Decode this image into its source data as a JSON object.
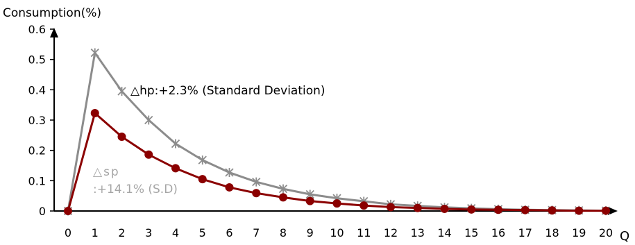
{
  "chart_data": {
    "type": "line",
    "ylabel": "Consumption(%)",
    "xlabel": "Q",
    "xlim": [
      0,
      20
    ],
    "ylim": [
      0,
      0.6
    ],
    "yticks": [
      "0",
      "0.1",
      "0.2",
      "0.3",
      "0.4",
      "0.5",
      "0.6"
    ],
    "x": [
      0,
      1,
      2,
      3,
      4,
      5,
      6,
      7,
      8,
      9,
      10,
      11,
      12,
      13,
      14,
      15,
      16,
      17,
      18,
      19,
      20
    ],
    "xticks": [
      "0",
      "1",
      "2",
      "3",
      "4",
      "5",
      "6",
      "7",
      "8",
      "9",
      "10",
      "11",
      "12",
      "13",
      "14",
      "15",
      "16",
      "17",
      "18",
      "19",
      "20"
    ],
    "grid": false,
    "series": [
      {
        "name": "△hp:+2.3% (Standard Deviation)",
        "color": "#8c8c8c",
        "marker": "star",
        "values": [
          0,
          0.522,
          0.395,
          0.3,
          0.222,
          0.168,
          0.127,
          0.096,
          0.073,
          0.055,
          0.042,
          0.032,
          0.022,
          0.017,
          0.012,
          0.009,
          0.006,
          0.004,
          0.003,
          0.002,
          0.001
        ]
      },
      {
        "name_lines": [
          "△sp",
          ":+14.1% (S.D)"
        ],
        "color": "#8b0000",
        "marker": "circle",
        "values": [
          0,
          0.323,
          0.245,
          0.186,
          0.141,
          0.105,
          0.078,
          0.059,
          0.045,
          0.033,
          0.025,
          0.018,
          0.013,
          0.01,
          0.007,
          0.005,
          0.004,
          0.003,
          0.002,
          0.001,
          0.001
        ]
      }
    ]
  }
}
